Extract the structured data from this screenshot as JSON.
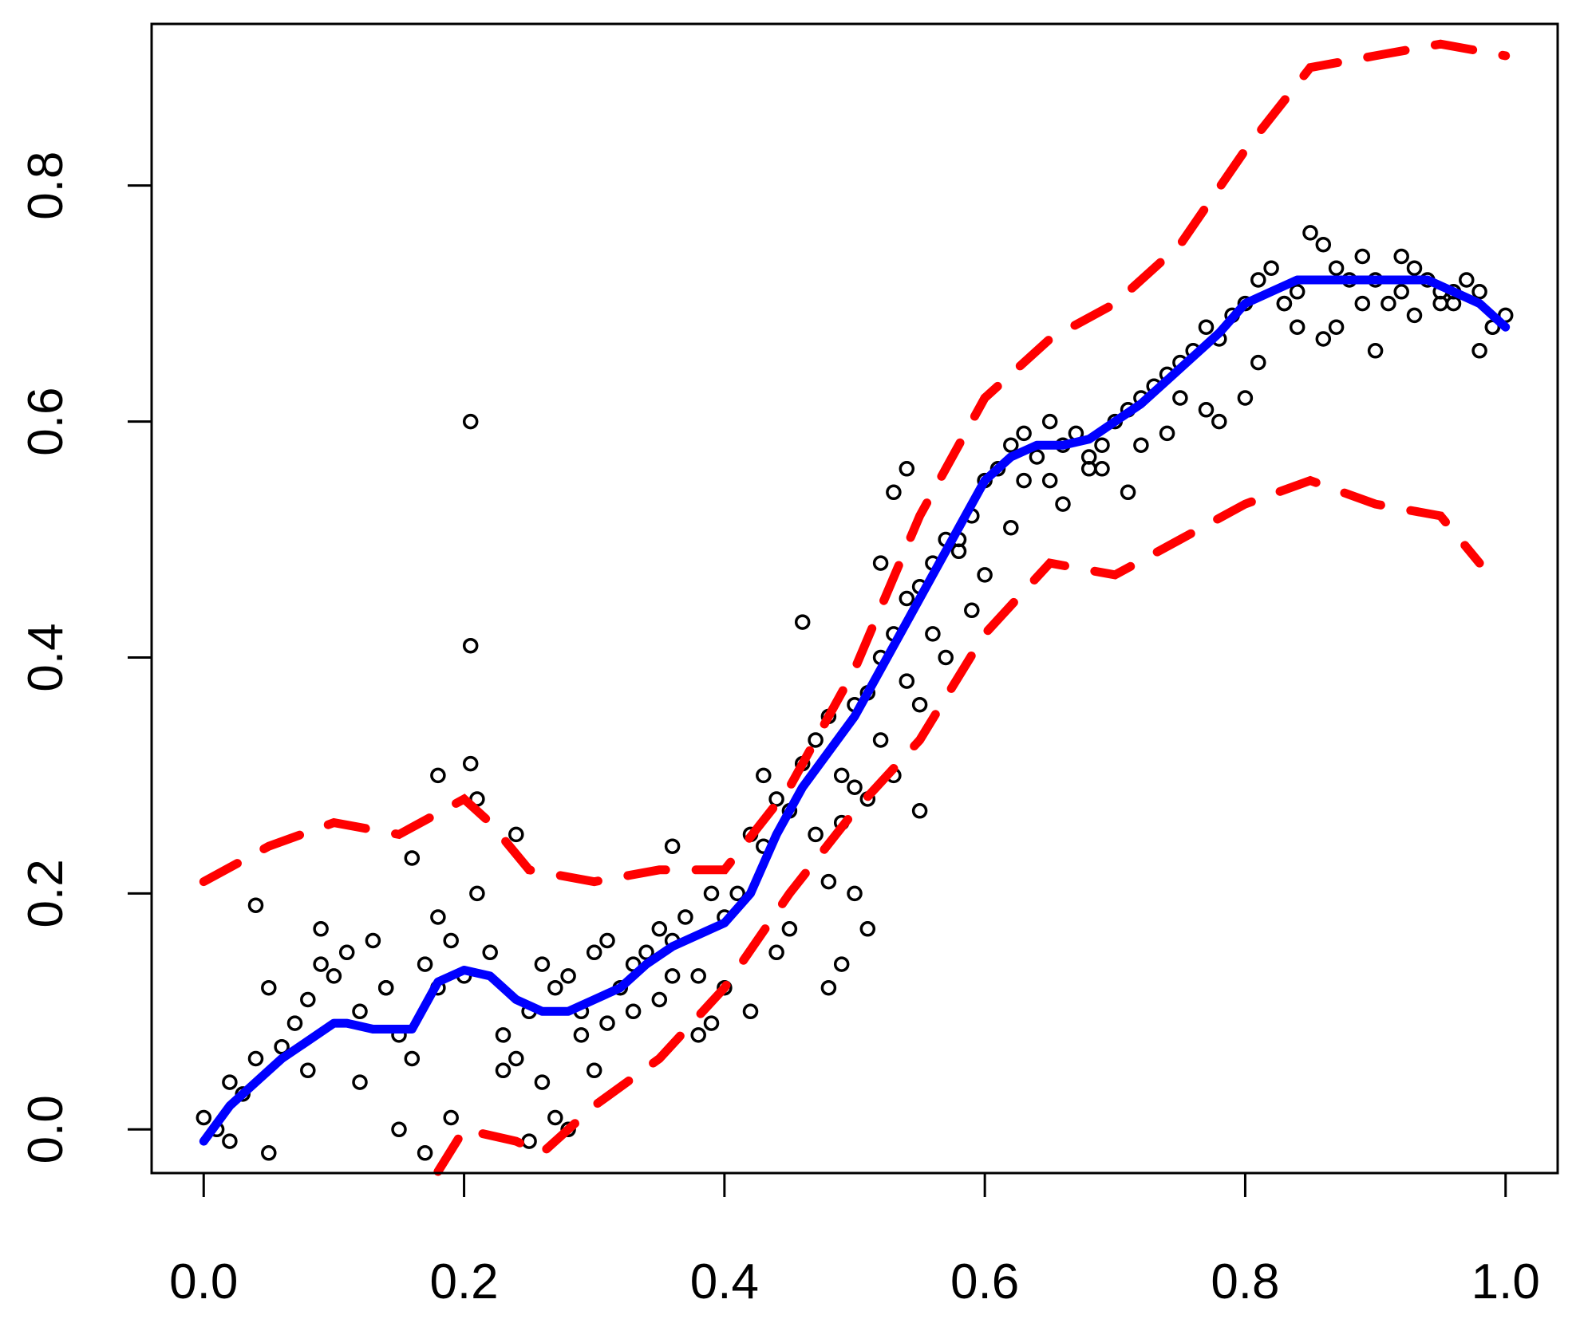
{
  "chart_data": {
    "type": "scatter",
    "title": "",
    "xlabel": "",
    "ylabel": "",
    "xlim": [
      -0.04,
      1.04
    ],
    "ylim": [
      -0.037,
      0.937
    ],
    "grid": false,
    "x_ticks": [
      0.0,
      0.2,
      0.4,
      0.6,
      0.8,
      1.0
    ],
    "x_tick_labels": [
      "0.0",
      "0.2",
      "0.4",
      "0.6",
      "0.8",
      "1.0"
    ],
    "y_ticks": [
      0.0,
      0.2,
      0.4,
      0.6,
      0.8
    ],
    "y_tick_labels": [
      "0.0",
      "0.2",
      "0.4",
      "0.6",
      "0.8"
    ],
    "colors": {
      "points": "#000000",
      "fit": "#0000ff",
      "band": "#ff0000",
      "axis": "#000000"
    },
    "series": [
      {
        "kind": "points",
        "x": [
          0.0,
          0.01,
          0.02,
          0.03,
          0.04,
          0.05,
          0.06,
          0.07,
          0.08,
          0.09,
          0.1,
          0.11,
          0.12,
          0.13,
          0.14,
          0.15,
          0.16,
          0.17,
          0.18,
          0.19,
          0.2,
          0.205,
          0.205,
          0.205,
          0.21,
          0.22,
          0.23,
          0.24,
          0.25,
          0.26,
          0.27,
          0.28,
          0.29,
          0.3,
          0.31,
          0.32,
          0.33,
          0.34,
          0.35,
          0.36,
          0.37,
          0.38,
          0.39,
          0.4,
          0.41,
          0.42,
          0.43,
          0.44,
          0.45,
          0.46,
          0.47,
          0.48,
          0.49,
          0.5,
          0.51,
          0.52,
          0.53,
          0.54,
          0.55,
          0.56,
          0.57,
          0.58,
          0.59,
          0.6,
          0.61,
          0.62,
          0.63,
          0.64,
          0.65,
          0.66,
          0.67,
          0.68,
          0.69,
          0.7,
          0.71,
          0.72,
          0.73,
          0.74,
          0.75,
          0.76,
          0.77,
          0.78,
          0.79,
          0.8,
          0.81,
          0.82,
          0.83,
          0.84,
          0.85,
          0.86,
          0.87,
          0.88,
          0.89,
          0.9,
          0.91,
          0.92,
          0.93,
          0.94,
          0.95,
          0.96,
          0.97,
          0.98,
          0.99,
          1.0,
          0.02,
          0.05,
          0.08,
          0.12,
          0.15,
          0.17,
          0.19,
          0.23,
          0.25,
          0.27,
          0.29,
          0.31,
          0.33,
          0.36,
          0.39,
          0.42,
          0.45,
          0.47,
          0.49,
          0.5,
          0.52,
          0.54,
          0.56,
          0.58,
          0.6,
          0.63,
          0.66,
          0.69,
          0.72,
          0.75,
          0.78,
          0.81,
          0.84,
          0.87,
          0.9,
          0.93,
          0.96,
          0.99,
          0.04,
          0.09,
          0.14,
          0.18,
          0.21,
          0.26,
          0.3,
          0.35,
          0.4,
          0.44,
          0.48,
          0.51,
          0.53,
          0.55,
          0.57,
          0.59,
          0.62,
          0.65,
          0.68,
          0.71,
          0.74,
          0.77,
          0.8,
          0.83,
          0.86,
          0.89,
          0.92,
          0.95,
          0.98,
          0.16,
          0.18,
          0.24,
          0.28,
          0.48,
          0.49,
          0.5,
          0.51,
          0.53,
          0.54,
          0.55,
          0.46,
          0.43,
          0.52,
          0.36,
          0.38
        ],
        "y": [
          0.01,
          0.0,
          0.04,
          0.03,
          0.06,
          0.12,
          0.07,
          0.09,
          0.11,
          0.14,
          0.13,
          0.15,
          0.1,
          0.16,
          0.12,
          0.08,
          0.06,
          0.14,
          0.12,
          0.16,
          0.13,
          0.6,
          0.41,
          0.31,
          0.2,
          0.15,
          0.08,
          0.06,
          0.1,
          0.14,
          0.12,
          0.13,
          0.1,
          0.15,
          0.16,
          0.12,
          0.14,
          0.15,
          0.17,
          0.16,
          0.18,
          0.13,
          0.2,
          0.18,
          0.2,
          0.25,
          0.24,
          0.28,
          0.27,
          0.31,
          0.33,
          0.35,
          0.3,
          0.36,
          0.37,
          0.4,
          0.42,
          0.45,
          0.46,
          0.48,
          0.5,
          0.49,
          0.52,
          0.55,
          0.56,
          0.58,
          0.59,
          0.57,
          0.6,
          0.58,
          0.59,
          0.57,
          0.58,
          0.6,
          0.61,
          0.62,
          0.63,
          0.64,
          0.65,
          0.66,
          0.68,
          0.67,
          0.69,
          0.7,
          0.72,
          0.73,
          0.7,
          0.71,
          0.76,
          0.75,
          0.73,
          0.72,
          0.74,
          0.72,
          0.7,
          0.71,
          0.73,
          0.72,
          0.71,
          0.7,
          0.72,
          0.71,
          0.68,
          0.69,
          -0.01,
          -0.02,
          0.05,
          0.04,
          0.0,
          -0.02,
          0.01,
          0.05,
          -0.01,
          0.01,
          0.08,
          0.09,
          0.1,
          0.13,
          0.09,
          0.1,
          0.17,
          0.25,
          0.26,
          0.29,
          0.33,
          0.38,
          0.42,
          0.5,
          0.47,
          0.55,
          0.53,
          0.56,
          0.58,
          0.62,
          0.6,
          0.65,
          0.68,
          0.68,
          0.66,
          0.69,
          0.71,
          0.68,
          0.19,
          0.17,
          0.12,
          0.18,
          0.28,
          0.04,
          0.05,
          0.11,
          0.12,
          0.15,
          0.21,
          0.28,
          0.3,
          0.36,
          0.4,
          0.44,
          0.51,
          0.55,
          0.56,
          0.54,
          0.59,
          0.61,
          0.62,
          0.7,
          0.67,
          0.7,
          0.74,
          0.7,
          0.66,
          0.23,
          0.3,
          0.25,
          0.0,
          0.12,
          0.14,
          0.2,
          0.17,
          0.54,
          0.56,
          0.27,
          0.43,
          0.3,
          0.48,
          0.24,
          0.08
        ],
        "note_count": "dense cloud of ~1500 points; representative subset recorded"
      },
      {
        "kind": "fit",
        "x": [
          0.0,
          0.02,
          0.04,
          0.06,
          0.08,
          0.1,
          0.11,
          0.13,
          0.16,
          0.18,
          0.2,
          0.22,
          0.24,
          0.26,
          0.28,
          0.3,
          0.32,
          0.34,
          0.36,
          0.38,
          0.4,
          0.42,
          0.44,
          0.46,
          0.48,
          0.5,
          0.52,
          0.54,
          0.56,
          0.58,
          0.6,
          0.62,
          0.64,
          0.66,
          0.68,
          0.7,
          0.72,
          0.74,
          0.76,
          0.78,
          0.8,
          0.82,
          0.84,
          0.86,
          0.88,
          0.9,
          0.92,
          0.94,
          0.96,
          0.98,
          1.0
        ],
        "y": [
          -0.01,
          0.02,
          0.04,
          0.06,
          0.075,
          0.09,
          0.09,
          0.085,
          0.085,
          0.125,
          0.135,
          0.13,
          0.11,
          0.1,
          0.1,
          0.11,
          0.12,
          0.14,
          0.155,
          0.165,
          0.175,
          0.2,
          0.25,
          0.29,
          0.32,
          0.35,
          0.39,
          0.43,
          0.47,
          0.51,
          0.55,
          0.57,
          0.58,
          0.58,
          0.585,
          0.6,
          0.615,
          0.635,
          0.655,
          0.675,
          0.7,
          0.71,
          0.72,
          0.72,
          0.72,
          0.72,
          0.72,
          0.72,
          0.71,
          0.7,
          0.68
        ]
      },
      {
        "kind": "upper_band",
        "x": [
          0.0,
          0.05,
          0.1,
          0.15,
          0.2,
          0.22,
          0.25,
          0.3,
          0.35,
          0.4,
          0.45,
          0.5,
          0.55,
          0.6,
          0.65,
          0.7,
          0.75,
          0.8,
          0.85,
          0.9,
          0.95,
          1.0
        ],
        "y": [
          0.21,
          0.24,
          0.26,
          0.25,
          0.28,
          0.26,
          0.22,
          0.21,
          0.22,
          0.22,
          0.29,
          0.39,
          0.52,
          0.62,
          0.67,
          0.7,
          0.75,
          0.83,
          0.9,
          0.91,
          0.92,
          0.91
        ]
      },
      {
        "kind": "lower_band",
        "x": [
          0.18,
          0.2,
          0.24,
          0.26,
          0.28,
          0.3,
          0.35,
          0.4,
          0.45,
          0.5,
          0.55,
          0.6,
          0.65,
          0.7,
          0.75,
          0.8,
          0.85,
          0.9,
          0.95,
          0.98
        ],
        "y": [
          -0.05,
          0.0,
          -0.01,
          -0.02,
          0.0,
          0.02,
          0.06,
          0.12,
          0.2,
          0.27,
          0.33,
          0.42,
          0.48,
          0.47,
          0.5,
          0.53,
          0.55,
          0.53,
          0.52,
          0.48
        ]
      }
    ]
  }
}
